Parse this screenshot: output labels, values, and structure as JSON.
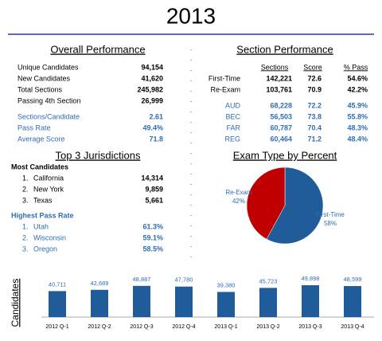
{
  "title": "2013",
  "overall": {
    "heading": "Overall Performance",
    "rows": [
      [
        "Unique Candidates",
        "94,154"
      ],
      [
        "New Candidates",
        "41,620"
      ],
      [
        "Total Sections",
        "245,982"
      ],
      [
        "Passing 4th Section",
        "26,999"
      ]
    ],
    "rows2": [
      [
        "Sections/Candidate",
        "2.61"
      ],
      [
        "Pass Rate",
        "49.4%"
      ],
      [
        "Average Score",
        "71.8"
      ]
    ]
  },
  "section": {
    "heading": "Section Performance",
    "columns": [
      "Sections",
      "Score",
      "% Pass"
    ],
    "rows": [
      [
        "First-Time",
        "142,221",
        "72.6",
        "54.6%"
      ],
      [
        "Re-Exam",
        "103,761",
        "70.9",
        "42.2%"
      ]
    ],
    "rows2": [
      [
        "AUD",
        "68,228",
        "72.2",
        "45.9%"
      ],
      [
        "BEC",
        "56,503",
        "73.8",
        "55.8%"
      ],
      [
        "FAR",
        "60,787",
        "70.4",
        "48.3%"
      ],
      [
        "REG",
        "60,464",
        "71.2",
        "48.4%"
      ]
    ]
  },
  "jurisdictions": {
    "heading": "Top 3 Jurisdictions",
    "most": {
      "title": "Most Candidates",
      "rows": [
        [
          "1.",
          "California",
          "14,314"
        ],
        [
          "2.",
          "New York",
          "9,859"
        ],
        [
          "3.",
          "Texas",
          "5,661"
        ]
      ]
    },
    "pass": {
      "title": "Highest Pass Rate",
      "rows": [
        [
          "1.",
          "Utah",
          "61.3%"
        ],
        [
          "2.",
          "Wisconsin",
          "59.1%"
        ],
        [
          "3.",
          "Oregon",
          "58.5%"
        ]
      ]
    }
  },
  "chart_data": [
    {
      "type": "pie",
      "title": "Exam Type by Percent",
      "categories": [
        "Re-Exam",
        "First-Time"
      ],
      "values": [
        42,
        58
      ],
      "value_labels": [
        "42%",
        "58%"
      ],
      "colors": [
        "#c00000",
        "#1f5c99"
      ]
    },
    {
      "type": "bar",
      "y_label": "Candidates",
      "categories": [
        "2012 Q-1",
        "2012 Q-2",
        "2012 Q-3",
        "2012 Q-4",
        "2013 Q-1",
        "2013 Q-2",
        "2013 Q-3",
        "2013 Q-4"
      ],
      "values": [
        40711,
        42689,
        48887,
        47780,
        39380,
        45723,
        49898,
        48599
      ],
      "value_labels": [
        "40,711",
        "42,689",
        "48,887",
        "47,780",
        "39,380",
        "45,723",
        "49,898",
        "48,599"
      ],
      "color": "#1f5c99"
    }
  ]
}
